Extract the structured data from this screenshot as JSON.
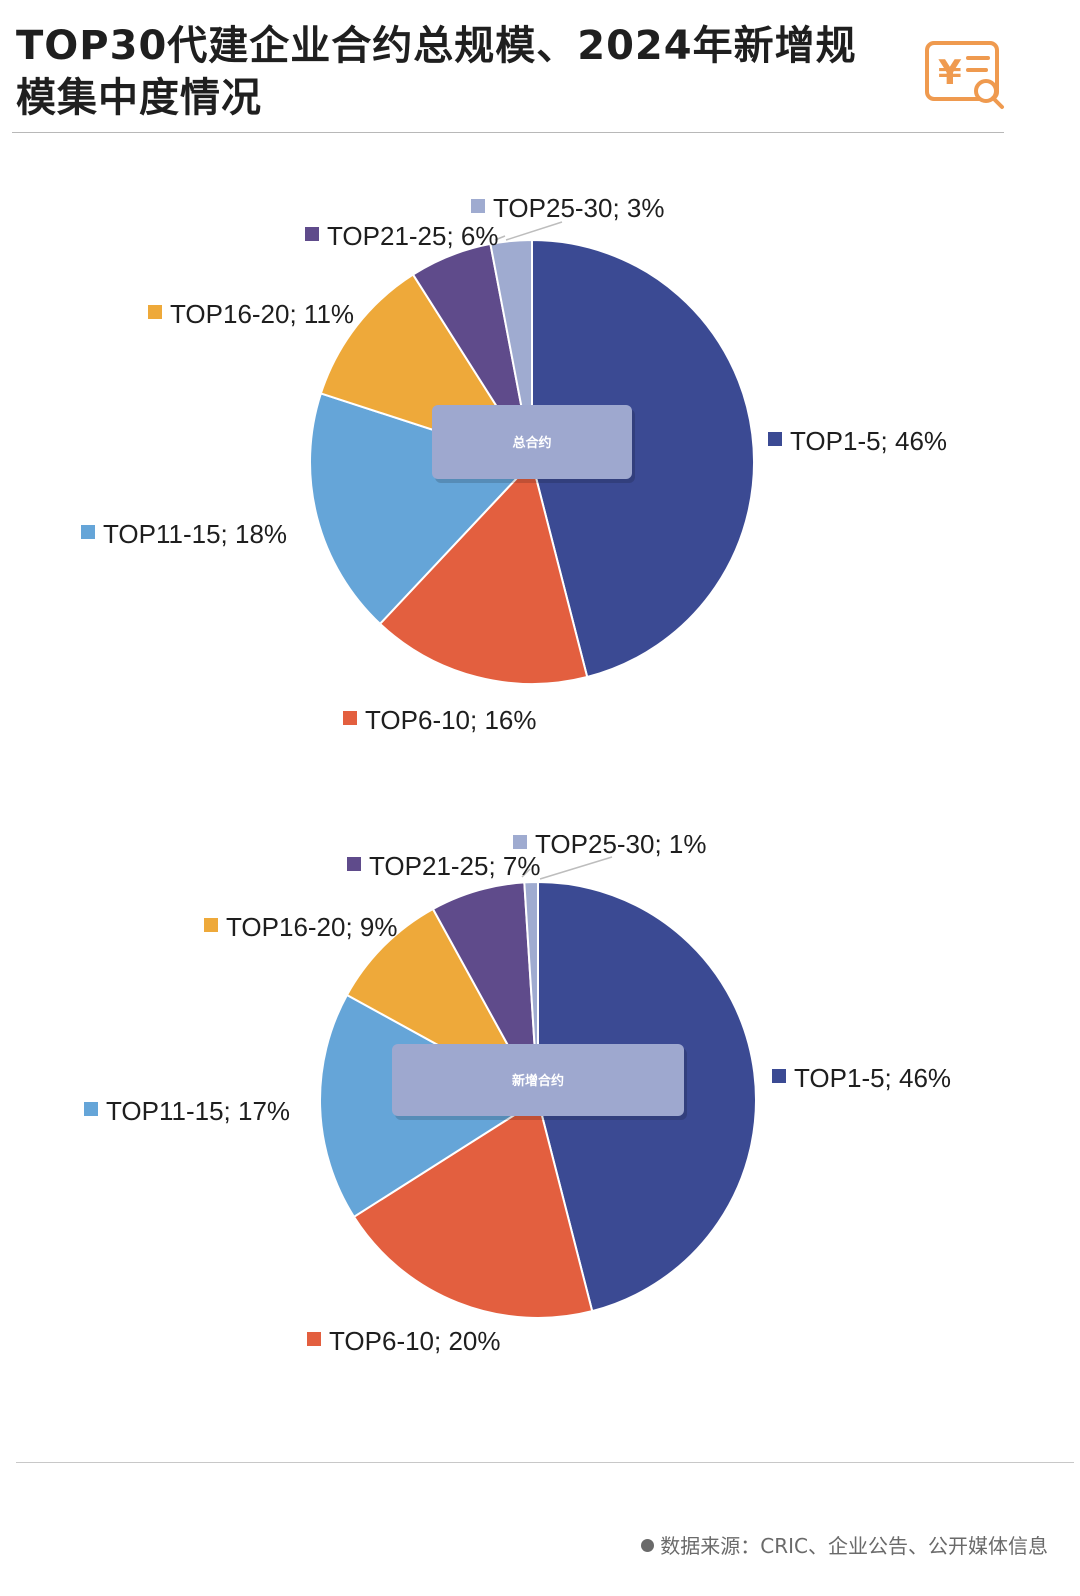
{
  "title": "TOP30代建企业合约总规模、2024年新增规模集中度情况",
  "source": "数据来源：CRIC、企业公告、公开媒体信息",
  "colors": {
    "TOP1-5": "#3b4a93",
    "TOP6-10": "#e35f3f",
    "TOP11-15": "#65a5d8",
    "TOP16-20": "#eea93a",
    "TOP21-25": "#5f4b8b",
    "TOP25-30": "#9fabd0"
  },
  "chart_data": [
    {
      "type": "pie",
      "title": "总合约",
      "categories": [
        "TOP1-5",
        "TOP6-10",
        "TOP11-15",
        "TOP16-20",
        "TOP21-25",
        "TOP25-30"
      ],
      "values": [
        46,
        16,
        18,
        11,
        6,
        3
      ],
      "labels": [
        "TOP1-5; 46%",
        "TOP6-10; 16%",
        "TOP11-15; 18%",
        "TOP16-20; 11%",
        "TOP21-25; 6%",
        "TOP25-30; 3%"
      ],
      "legend": "none"
    },
    {
      "type": "pie",
      "title": "新增合约",
      "categories": [
        "TOP1-5",
        "TOP6-10",
        "TOP11-15",
        "TOP16-20",
        "TOP21-25",
        "TOP25-30"
      ],
      "values": [
        46,
        20,
        17,
        9,
        7,
        1
      ],
      "labels": [
        "TOP1-5; 46%",
        "TOP6-10; 20%",
        "TOP11-15; 17%",
        "TOP16-20; 9%",
        "TOP21-25; 7%",
        "TOP25-30; 1%"
      ],
      "legend": "none"
    }
  ]
}
